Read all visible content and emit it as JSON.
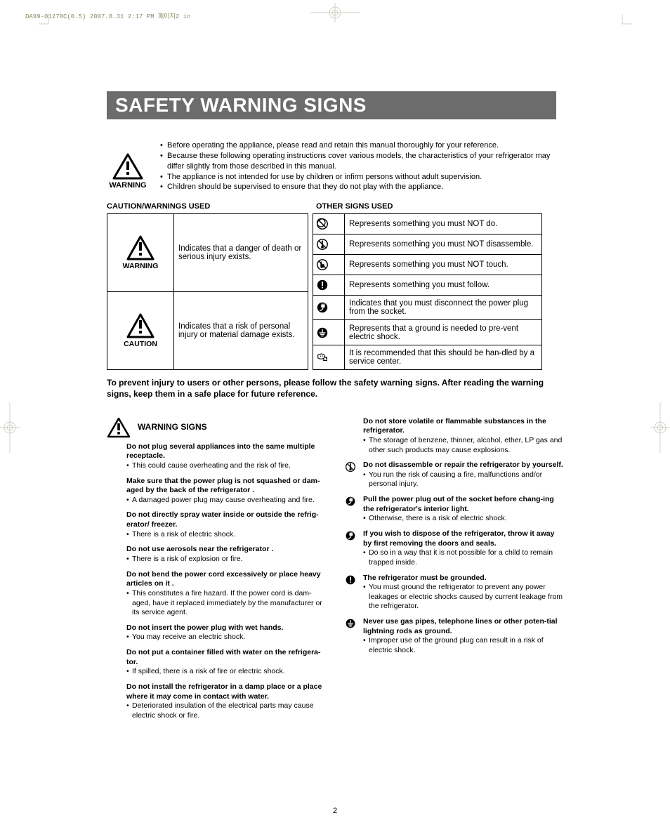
{
  "meta": {
    "header_stamp": "DA99-01278C(0.5)  2007.8.31  2:17 PM  페이지2    in"
  },
  "page": {
    "title": "SAFETY  WARNING SIGNS",
    "number": "2"
  },
  "colors": {
    "title_bg": "#6c6c6c",
    "title_fg": "#ffffff",
    "text": "#000000",
    "stamp": "#8a8a6a",
    "cropmark": "#c0c0b0"
  },
  "intro": {
    "warning_label": "WARNING",
    "bullets": [
      "Before operating the appliance, please read and retain this manual thoroughly for your reference.",
      "Because these following operating instructions cover various models, the characteristics of your refrigerator may differ slightly from those described in this manual.",
      "The appliance is not intended for use by children or infirm persons without adult supervision.",
      "Children should be supervised to ensure that they do not play with the appliance."
    ]
  },
  "cw": {
    "heading": "CAUTION/WARNINGS USED",
    "rows": [
      {
        "label": "WARNING",
        "desc": "Indicates that a danger of death or serious injury exists."
      },
      {
        "label": "CAUTION",
        "desc": "Indicates that a risk of personal injury or material damage exists."
      }
    ]
  },
  "os": {
    "heading": "OTHER SIGNS USED",
    "rows": [
      {
        "icon": "no",
        "desc": "Represents something you must NOT do."
      },
      {
        "icon": "no-disasm",
        "desc": "Represents something you must NOT disassemble."
      },
      {
        "icon": "no-touch",
        "desc": "Represents something you must NOT touch."
      },
      {
        "icon": "must",
        "desc": "Represents something you must follow."
      },
      {
        "icon": "unplug",
        "desc": "Indicates that you must disconnect the power plug from the socket."
      },
      {
        "icon": "ground",
        "desc": "Represents that a ground is needed to pre-vent electric shock."
      },
      {
        "icon": "service",
        "desc": "It is recommended that this should be han-dled by a service center."
      }
    ]
  },
  "prevent": "To prevent injury to users or other persons, please follow the safety warning signs. After reading the warning signs, keep them in a safe place for future reference.",
  "ws_heading": "WARNING SIGNS",
  "left_items": [
    {
      "hd": "Do not plug several appliances into the same multiple receptacle.",
      "lines": [
        "This could cause overheating and the risk of fire."
      ]
    },
    {
      "hd": "Make sure that the power plug is not squashed or dam-aged by the back of the refrigerator .",
      "lines": [
        "A damaged power plug may cause overheating and fire."
      ]
    },
    {
      "hd": "Do not directly spray water inside or outside the refrig-erator/ freezer.",
      "lines": [
        "There is a risk of electric shock."
      ]
    },
    {
      "hd": "Do not use aerosols near the refrigerator .",
      "lines": [
        "There is a risk of explosion or fire."
      ]
    },
    {
      "hd": "Do not bend the power cord excessively or place heavy articles on it .",
      "lines": [
        "This constitutes a fire hazard. If the power cord is dam-aged, have it replaced immediately by the manufacturer or its service agent."
      ]
    },
    {
      "hd": "Do not insert the power plug with wet hands.",
      "lines": [
        "You may receive an electric shock."
      ]
    },
    {
      "hd": "Do not put a container filled with water on the refrigera-tor.",
      "lines": [
        "If spilled, there is a risk of fire or electric shock."
      ]
    },
    {
      "hd": "Do not install the refrigerator  in a damp place or a place where it may come in contact with water.",
      "lines": [
        "Deteriorated insulation of the electrical parts may cause electric shock or fire."
      ]
    }
  ],
  "right_items": [
    {
      "icon": null,
      "hd": "Do not store volatile or flammable substances in the refrigerator.",
      "lines": [
        "The storage of benzene, thinner, alcohol, ether, LP gas and other such products may cause explosions."
      ]
    },
    {
      "icon": "no-disasm",
      "hd": "Do not disassemble or repair the refrigerator by yourself.",
      "lines": [
        "You run the risk of causing a fire, malfunctions and/or personal injury."
      ]
    },
    {
      "icon": "unplug",
      "hd": "Pull the power plug out of the socket before chang-ing the refrigerator's interior light.",
      "lines": [
        "Otherwise, there is a risk of electric shock."
      ]
    },
    {
      "icon": "unplug",
      "hd": "If you wish to dispose of the refrigerator, throw it away by first removing the doors and seals.",
      "lines": [
        "Do so in a way that it is not possible for a child to remain trapped  inside."
      ]
    },
    {
      "icon": "must",
      "hd": "The refrigerator must be grounded.",
      "lines": [
        "You must ground the refrigerator to prevent any power leakages or electric shocks caused by current leakage from the refrigerator."
      ]
    },
    {
      "icon": "ground",
      "hd": "Never use gas pipes, telephone lines or other poten-tial lightning rods as ground.",
      "lines": [
        "Improper use of the ground plug can result in a risk of electric shock."
      ]
    }
  ]
}
